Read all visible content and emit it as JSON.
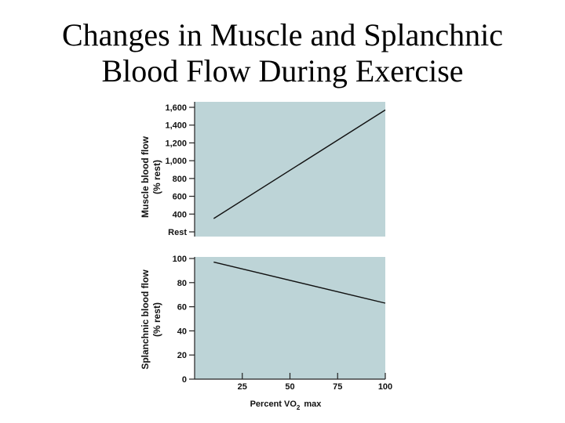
{
  "title": {
    "line1": "Changes in Muscle and Splanchnic",
    "line2": "Blood Flow During Exercise"
  },
  "chart_data": [
    {
      "type": "line",
      "panel": "top",
      "ylabel_line1": "Muscle blood flow",
      "ylabel_line2": "(% rest)",
      "ytick_labels": [
        "Rest",
        "400",
        "600",
        "800",
        "1,000",
        "1,200",
        "1,400",
        "1,600"
      ],
      "ytick_values": [
        200,
        400,
        600,
        800,
        1000,
        1200,
        1400,
        1600
      ],
      "ylim": [
        200,
        1600
      ],
      "xlim": [
        0,
        100
      ],
      "series": [
        {
          "name": "Muscle blood flow",
          "x": [
            10,
            100
          ],
          "y": [
            350,
            1570
          ]
        }
      ],
      "background": "#bdd4d7"
    },
    {
      "type": "line",
      "panel": "bottom",
      "ylabel_line1": "Splanchnic blood flow",
      "ylabel_line2": "(% rest)",
      "ytick_labels": [
        "0",
        "20",
        "40",
        "60",
        "80",
        "100"
      ],
      "ytick_values": [
        0,
        20,
        40,
        60,
        80,
        100
      ],
      "ylim": [
        0,
        100
      ],
      "xlim": [
        0,
        100
      ],
      "xtick_labels": [
        "25",
        "50",
        "75",
        "100"
      ],
      "xtick_values": [
        25,
        50,
        75,
        100
      ],
      "xlabel_main": "Percent VO",
      "xlabel_sub": "2",
      "xlabel_suffix": "max",
      "series": [
        {
          "name": "Splanchnic blood flow",
          "x": [
            10,
            100
          ],
          "y": [
            97,
            63
          ]
        }
      ],
      "background": "#bdd4d7"
    }
  ]
}
